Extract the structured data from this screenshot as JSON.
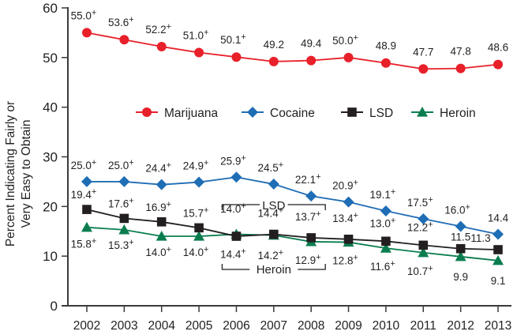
{
  "chart_data": {
    "type": "line",
    "title": "",
    "xlabel": "",
    "ylabel": "Percent Indicating Fairly or Very Easy to Obtain",
    "ylabel_lines": [
      "Percent Indicating Fairly or",
      "Very Easy to Obtain"
    ],
    "ylim": [
      0,
      60
    ],
    "yticks": [
      0,
      10,
      20,
      30,
      40,
      50,
      60
    ],
    "grid": false,
    "legend_position": "inside-upper-middle",
    "x": [
      "2002",
      "2003",
      "2004",
      "2005",
      "2006",
      "2007",
      "2008",
      "2009",
      "2010",
      "2011",
      "2012",
      "2013"
    ],
    "series": [
      {
        "name": "Marijuana",
        "color": "#e8202a",
        "marker": "circle",
        "values": [
          55.0,
          53.6,
          52.2,
          51.0,
          50.1,
          49.2,
          49.4,
          50.0,
          48.9,
          47.7,
          47.8,
          48.6
        ],
        "labels": [
          "55.0+",
          "53.6+",
          "52.2+",
          "51.0+",
          "50.1+",
          "49.2",
          "49.4",
          "50.0+",
          "48.9",
          "47.7",
          "47.8",
          "48.6"
        ],
        "label_pos": [
          "above",
          "above",
          "above",
          "above",
          "above",
          "above",
          "above",
          "above",
          "above",
          "above",
          "above",
          "above"
        ]
      },
      {
        "name": "Cocaine",
        "color": "#1f6db5",
        "marker": "diamond",
        "values": [
          25.0,
          25.0,
          24.4,
          24.9,
          25.9,
          24.5,
          22.1,
          20.9,
          19.1,
          17.5,
          16.0,
          14.4
        ],
        "labels": [
          "25.0+",
          "25.0+",
          "24.4+",
          "24.9+",
          "25.9+",
          "24.5+",
          "22.1+",
          "20.9+",
          "19.1+",
          "17.5+",
          "16.0+",
          "14.4"
        ],
        "label_pos": [
          "above",
          "above",
          "above",
          "above",
          "above",
          "above",
          "above",
          "above",
          "above",
          "above",
          "above",
          "above"
        ]
      },
      {
        "name": "LSD",
        "color": "#231f20",
        "marker": "square",
        "values": [
          19.4,
          17.6,
          16.9,
          15.7,
          14.0,
          14.4,
          13.7,
          13.4,
          13.0,
          12.2,
          11.5,
          11.3
        ],
        "labels": [
          "19.4+",
          "17.6+",
          "16.9+",
          "15.7+",
          "14.0+",
          "14.4+",
          "13.7+",
          "13.4+",
          "13.0+",
          "12.2+",
          "11.5",
          "11.3"
        ],
        "label_pos": [
          "above",
          "above",
          "above",
          "above",
          "above",
          "above",
          "above",
          "above",
          "above",
          "above",
          "above",
          "above"
        ]
      },
      {
        "name": "Heroin",
        "color": "#0a7d4f",
        "marker": "triangle",
        "values": [
          15.8,
          15.3,
          14.0,
          14.0,
          14.4,
          14.2,
          12.9,
          12.8,
          11.6,
          10.7,
          9.9,
          9.1
        ],
        "labels": [
          "15.8+",
          "15.3+",
          "14.0+",
          "14.0+",
          "14.4+",
          "14.2+",
          "12.9+",
          "12.8+",
          "11.6+",
          "10.7+",
          "9.9",
          "9.1"
        ],
        "label_pos": [
          "below",
          "below",
          "below",
          "below",
          "below",
          "below",
          "below",
          "below",
          "below",
          "below",
          "below",
          "below"
        ]
      }
    ],
    "annotations": [
      {
        "text": "LSD",
        "type": "bracket-above",
        "from": "2006",
        "to": "2008"
      },
      {
        "text": "Heroin",
        "type": "bracket-below",
        "from": "2006",
        "to": "2008"
      }
    ]
  }
}
